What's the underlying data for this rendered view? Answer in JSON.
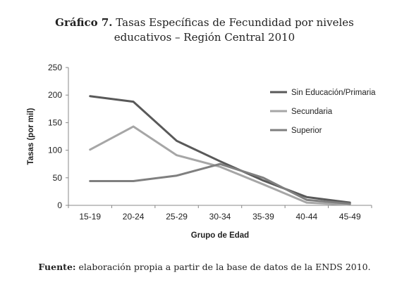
{
  "title": {
    "label": "Gráfico 7.",
    "line1": "Tasas Específicas de Fecundidad por niveles",
    "line2": "educativos – Región Central 2010"
  },
  "source": {
    "label": "Fuente:",
    "text": "elaboración propia a partir de la base de datos de la ENDS 2010."
  },
  "chart_data": {
    "type": "line",
    "xlabel": "Grupo de Edad",
    "ylabel": "Tasas (por mil)",
    "ylim": [
      0,
      250
    ],
    "yticks": [
      0,
      50,
      100,
      150,
      200,
      250
    ],
    "categories": [
      "15-19",
      "20-24",
      "25-29",
      "30-34",
      "35-39",
      "40-44",
      "45-49"
    ],
    "grid": false,
    "legend_position": "top-right",
    "series": [
      {
        "name": "Sin Educación/Primaria",
        "color": "#595959",
        "values": [
          198,
          188,
          117,
          80,
          45,
          15,
          5
        ]
      },
      {
        "name": "Secundaria",
        "color": "#a6a6a6",
        "values": [
          101,
          143,
          91,
          70,
          38,
          5,
          1
        ]
      },
      {
        "name": "Superior",
        "color": "#7f7f7f",
        "values": [
          44,
          44,
          54,
          75,
          50,
          10,
          3
        ]
      }
    ]
  }
}
